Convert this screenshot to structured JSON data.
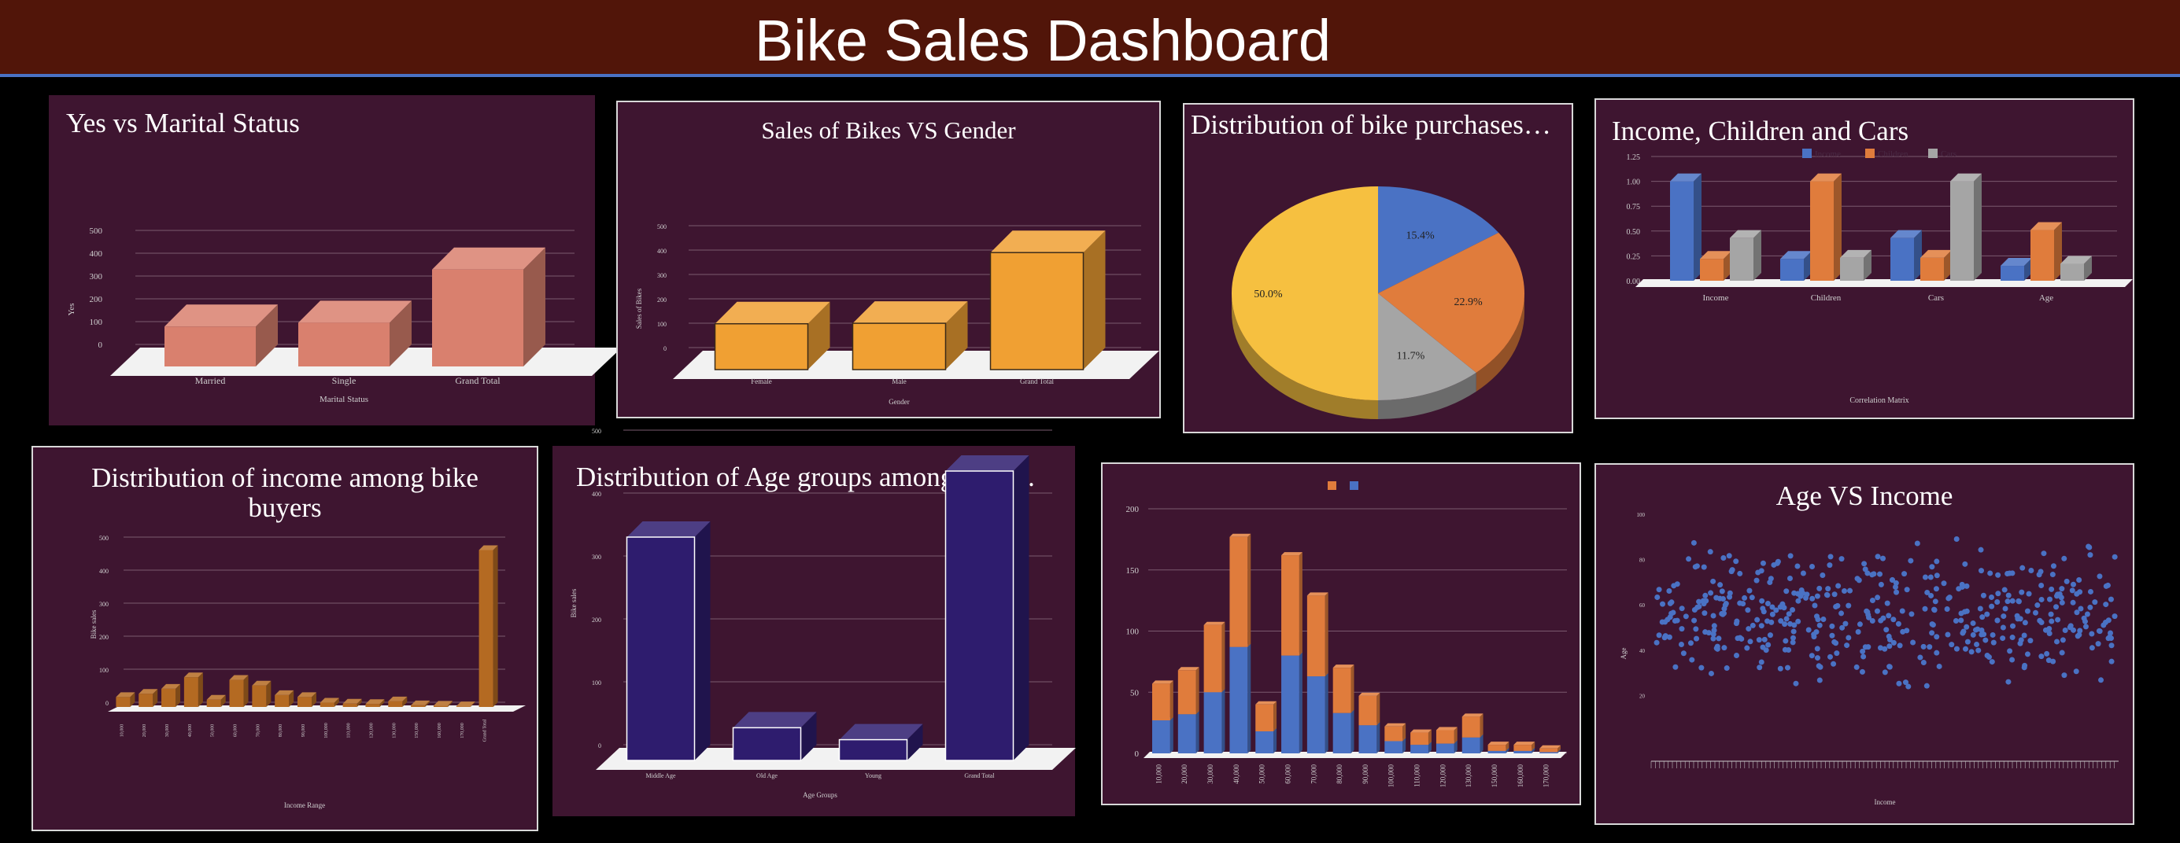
{
  "dashboard": {
    "title": "Bike Sales Dashboard"
  },
  "colors": {
    "header_bg": "#511509",
    "panel_bg": "#3e1530",
    "salmon": "#d9806e",
    "orange": "#f0a033",
    "blue": "#4a72c4",
    "gray": "#a5a5a5",
    "yellow": "#f6c040",
    "navy": "#2e1c6e",
    "brown": "#b46a22",
    "orange2": "#e07c3c"
  },
  "chart_data": [
    {
      "id": "marital",
      "type": "bar",
      "title": "Yes vs Marital Status",
      "categories": [
        "Married",
        "Single",
        "Grand Total"
      ],
      "values": [
        175,
        192,
        425
      ],
      "ylim": [
        0,
        500
      ],
      "yticks": [
        "0",
        "100",
        "200",
        "300",
        "400",
        "500"
      ],
      "xlabel": "Marital Status",
      "ylabel": "Yes"
    },
    {
      "id": "gender",
      "type": "bar",
      "title": "Sales of Bikes VS Gender",
      "categories": [
        "Female",
        "Male",
        "Grand Total"
      ],
      "values": [
        188,
        190,
        480
      ],
      "ylim": [
        0,
        500
      ],
      "yticks": [
        "0",
        "100",
        "200",
        "300",
        "400",
        "500"
      ],
      "xlabel": "Gender",
      "ylabel": "Sales of Bikes"
    },
    {
      "id": "distribution",
      "type": "pie",
      "title": "Distribution of bike purchases…",
      "values": [
        15.4,
        22.9,
        11.7,
        50.0
      ],
      "labels": [
        "15.4%",
        "22.9%",
        "11.7%",
        "50.0%"
      ]
    },
    {
      "id": "correlation",
      "type": "bar",
      "title": "Income, Children and Cars",
      "categories": [
        "Income",
        "Children",
        "Cars",
        "Age"
      ],
      "series": [
        {
          "name": "Income",
          "values": [
            1.0,
            0.22,
            0.43,
            0.15
          ]
        },
        {
          "name": "Children",
          "values": [
            0.22,
            1.0,
            0.23,
            0.51
          ]
        },
        {
          "name": "Cars",
          "values": [
            0.43,
            0.23,
            1.0,
            0.17
          ]
        }
      ],
      "ylim": [
        0,
        1.25
      ],
      "yticks": [
        "0.00",
        "0.25",
        "0.50",
        "0.75",
        "1.00",
        "1.25"
      ],
      "xlabel": "Correlation Matrix"
    },
    {
      "id": "income",
      "type": "bar",
      "title": "Distribution of income among bike buyers",
      "categories": [
        "10,000",
        "20,000",
        "30,000",
        "40,000",
        "50,000",
        "60,000",
        "70,000",
        "80,000",
        "90,000",
        "100,000",
        "110,000",
        "120,000",
        "130,000",
        "150,000",
        "160,000",
        "170,000",
        "Grand Total"
      ],
      "values": [
        30,
        40,
        55,
        90,
        22,
        82,
        65,
        36,
        30,
        13,
        10,
        9,
        17,
        5,
        4,
        2,
        475
      ],
      "ylim": [
        0,
        500
      ],
      "yticks": [
        "0",
        "100",
        "200",
        "300",
        "400",
        "500"
      ],
      "xlabel": "Income Range",
      "ylabel": "Bike sales"
    },
    {
      "id": "age",
      "type": "bar",
      "title": "Distribution of Age groups among bike…",
      "categories": [
        "Middle Age",
        "Old Age",
        "Young",
        "Grand Total"
      ],
      "values": [
        355,
        52,
        33,
        460
      ],
      "ylim": [
        0,
        500
      ],
      "yticks": [
        "0",
        "100",
        "200",
        "300",
        "400",
        "500"
      ],
      "xlabel": "Age Groups",
      "ylabel": "Bike sales"
    },
    {
      "id": "stacked",
      "type": "bar",
      "title": "",
      "categories": [
        "10,000",
        "20,000",
        "30,000",
        "40,000",
        "50,000",
        "60,000",
        "70,000",
        "80,000",
        "90,000",
        "100,000",
        "110,000",
        "120,000",
        "130,000",
        "150,000",
        "160,000",
        "170,000"
      ],
      "series": [
        {
          "name": "",
          "values": [
            27,
            32,
            50,
            87,
            18,
            80,
            63,
            33,
            23,
            10,
            7,
            8,
            13,
            2,
            2,
            1
          ]
        },
        {
          "name": "",
          "values": [
            30,
            36,
            55,
            90,
            22,
            82,
            66,
            37,
            24,
            12,
            10,
            11,
            17,
            5,
            5,
            3
          ]
        }
      ],
      "ylim": [
        0,
        200
      ],
      "yticks": [
        "0",
        "50",
        "100",
        "150",
        "200"
      ]
    },
    {
      "id": "scatter",
      "type": "scatter",
      "title": "Age VS Income",
      "xlim": [
        0,
        500
      ],
      "ylim": [
        0,
        100
      ],
      "yticks": [
        "20",
        "40",
        "60",
        "80",
        "100"
      ],
      "xlabel": "Income",
      "ylabel": "Age"
    }
  ]
}
